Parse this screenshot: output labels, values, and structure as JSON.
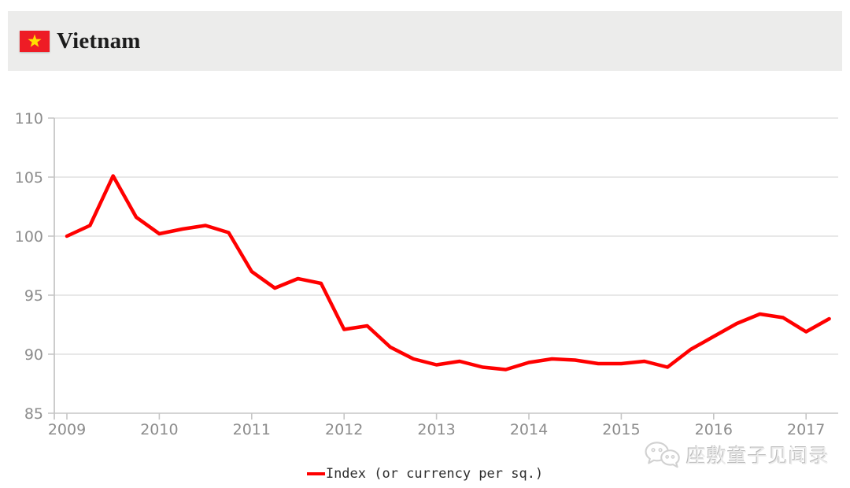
{
  "header": {
    "title": "Vietnam",
    "flag": {
      "name": "vietnam-flag",
      "red": "#ee1c25",
      "star_yellow": "#ffde00"
    }
  },
  "chart_data": {
    "type": "line",
    "title": "",
    "xlabel": "",
    "ylabel": "",
    "x_tick_labels": [
      "2009",
      "2010",
      "2011",
      "2012",
      "2013",
      "2014",
      "2015",
      "2016",
      "2017"
    ],
    "points_per_year": 4,
    "x_description": "quarterly data, 2009 Q1 through 2017 Q2",
    "y_ticks": [
      110,
      105,
      100,
      95,
      90,
      85
    ],
    "ylim": [
      85,
      110
    ],
    "grid": true,
    "legend_position": "bottom-center",
    "series": [
      {
        "name": "Index (or currency per sq.)",
        "color": "#ff0000",
        "values": [
          100.0,
          100.9,
          105.1,
          101.6,
          100.2,
          100.6,
          100.9,
          100.3,
          97.0,
          95.6,
          96.4,
          96.0,
          92.1,
          92.4,
          90.6,
          89.6,
          89.1,
          89.4,
          88.9,
          88.7,
          89.3,
          89.6,
          89.5,
          89.2,
          89.2,
          89.4,
          88.9,
          90.4,
          91.5,
          92.6,
          93.4,
          93.1,
          91.9,
          93.0
        ]
      }
    ]
  },
  "legend": {
    "label": "Index (or currency per sq.)",
    "marker_color": "#ff0000"
  },
  "watermark": {
    "icon": "wechat-icon",
    "text": "座敷童子见闻录"
  },
  "colors": {
    "grid": "#d9d9d9",
    "axis": "#c6c6c6",
    "tick_label": "#8c8c8c",
    "header_bg": "#ececeb",
    "line_red": "#ff0000"
  }
}
